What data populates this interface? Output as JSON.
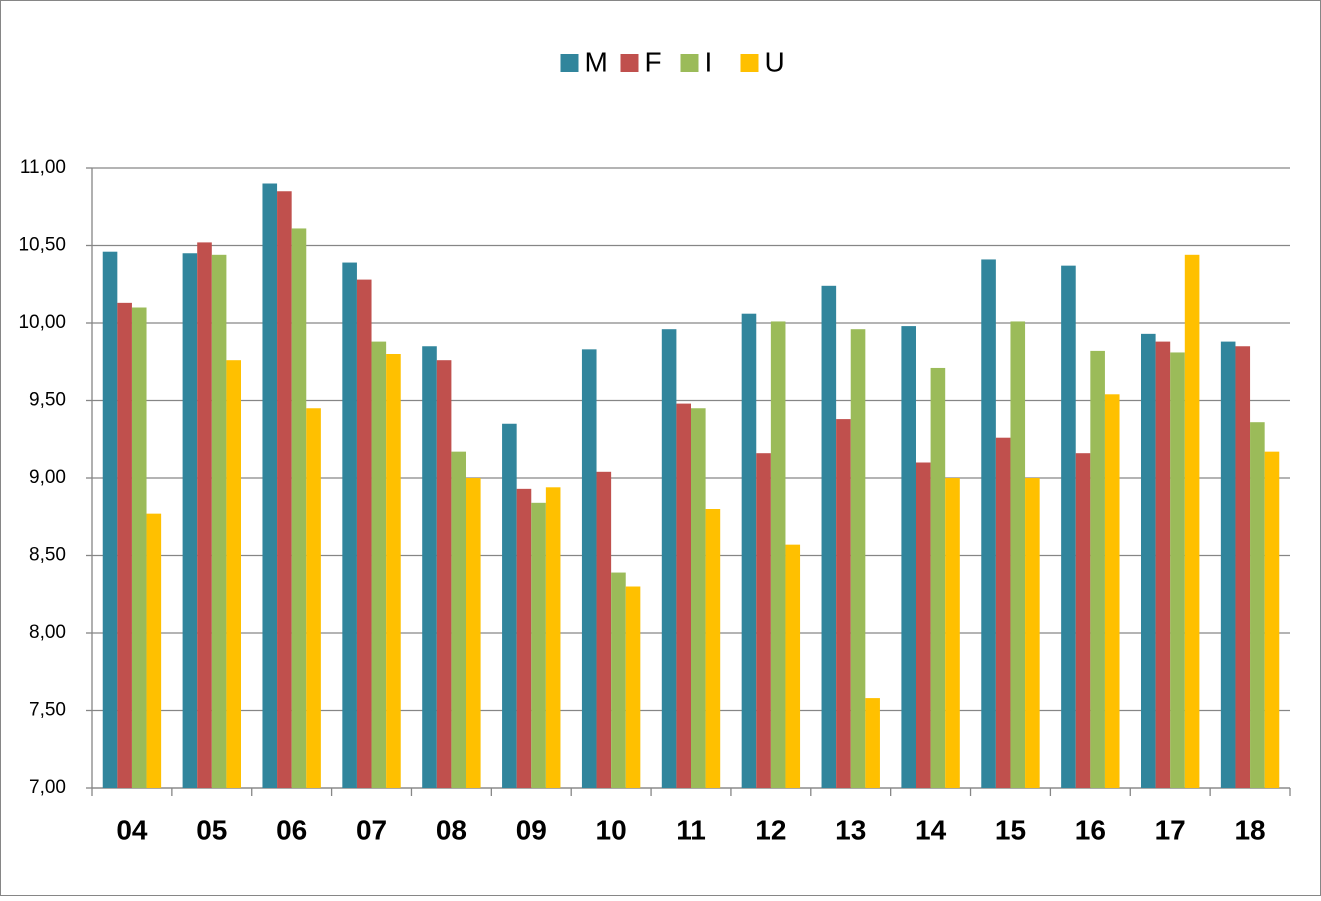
{
  "chart_data": {
    "type": "bar",
    "categories": [
      "04",
      "05",
      "06",
      "07",
      "08",
      "09",
      "10",
      "11",
      "12",
      "13",
      "14",
      "15",
      "16",
      "17",
      "18"
    ],
    "series": [
      {
        "name": "M",
        "color": "#31859c",
        "values": [
          10.46,
          10.45,
          10.9,
          10.39,
          9.85,
          9.35,
          9.83,
          9.96,
          10.06,
          10.24,
          9.98,
          10.41,
          10.37,
          9.93,
          9.88
        ]
      },
      {
        "name": "F",
        "color": "#c0504d",
        "values": [
          10.13,
          10.52,
          10.85,
          10.28,
          9.76,
          8.93,
          9.04,
          9.48,
          9.16,
          9.38,
          9.1,
          9.26,
          9.16,
          9.88,
          9.85
        ]
      },
      {
        "name": "I",
        "color": "#9bbb59",
        "values": [
          10.1,
          10.44,
          10.61,
          9.88,
          9.17,
          8.84,
          8.39,
          9.45,
          10.01,
          9.96,
          9.71,
          10.01,
          9.82,
          9.81,
          9.36
        ]
      },
      {
        "name": "U",
        "color": "#ffc000",
        "values": [
          8.77,
          9.76,
          9.45,
          9.8,
          9.0,
          8.94,
          8.3,
          8.8,
          8.57,
          7.58,
          9.0,
          9.0,
          9.54,
          10.44,
          9.17
        ]
      }
    ],
    "ylim": [
      7,
      11
    ],
    "yticks": [
      {
        "value": 7,
        "label": "7,00"
      },
      {
        "value": 7.5,
        "label": "7,50"
      },
      {
        "value": 8,
        "label": "8,00"
      },
      {
        "value": 8.5,
        "label": "8,50"
      },
      {
        "value": 9,
        "label": "9,00"
      },
      {
        "value": 9.5,
        "label": "9,50"
      },
      {
        "value": 10,
        "label": "10,00"
      },
      {
        "value": 10.5,
        "label": "10,50"
      },
      {
        "value": 11,
        "label": "11,00"
      }
    ],
    "grid": true,
    "legend": "top"
  }
}
